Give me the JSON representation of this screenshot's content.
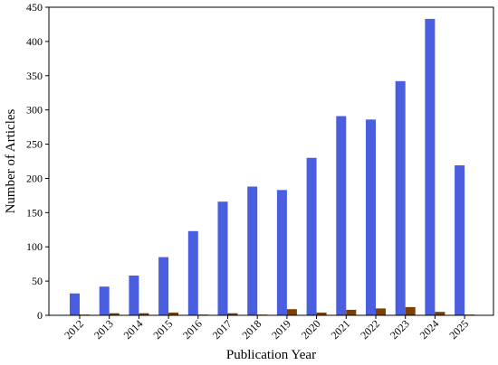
{
  "chart_data": {
    "type": "bar",
    "title": "",
    "xlabel": "Publication Year",
    "ylabel": "Number of Articles",
    "categories": [
      "2012",
      "2013",
      "2014",
      "2015",
      "2016",
      "2017",
      "2018",
      "2019",
      "2020",
      "2021",
      "2022",
      "2023",
      "2024",
      "2025"
    ],
    "series": [
      {
        "color": "#4a5fe0",
        "values": [
          32,
          42,
          58,
          85,
          123,
          166,
          188,
          183,
          230,
          291,
          286,
          342,
          433,
          219
        ]
      },
      {
        "color": "#7b3f00",
        "values": [
          1,
          3,
          3,
          4,
          1,
          3,
          1,
          9,
          4,
          8,
          10,
          12,
          5,
          1
        ]
      }
    ],
    "ylim": [
      0,
      450
    ],
    "yticks": [
      "0",
      "50",
      "100",
      "150",
      "200",
      "250",
      "300",
      "350",
      "400",
      "450"
    ],
    "grid": false,
    "legend": "none",
    "xtick_rotation_deg": 45
  }
}
